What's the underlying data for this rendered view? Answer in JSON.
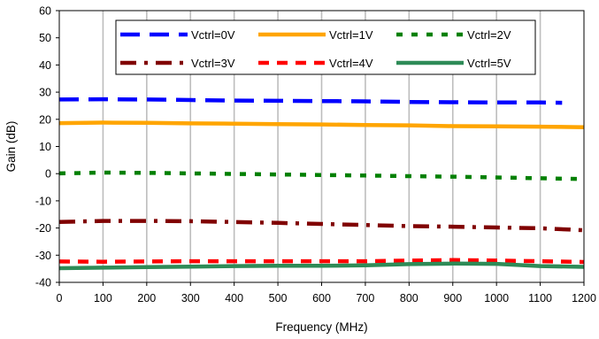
{
  "chart_data": {
    "type": "line",
    "title": "",
    "xlabel": "Frequency (MHz)",
    "ylabel": "Gain (dB)",
    "xlim": [
      0,
      1200
    ],
    "ylim": [
      -40,
      60
    ],
    "xticks": [
      0,
      100,
      200,
      300,
      400,
      500,
      600,
      700,
      800,
      900,
      1000,
      1100,
      1200
    ],
    "yticks": [
      -40,
      -30,
      -20,
      -10,
      0,
      10,
      20,
      30,
      40,
      50,
      60
    ],
    "grid": {
      "x": true,
      "y": false
    },
    "legend_position": "top",
    "series": [
      {
        "name": "Vctrl=0V",
        "color": "#0000ff",
        "dash": "long-dash",
        "x": [
          0,
          100,
          200,
          300,
          400,
          500,
          600,
          700,
          800,
          900,
          1000,
          1100,
          1150
        ],
        "y": [
          27.3,
          27.4,
          27.3,
          27.1,
          26.9,
          26.8,
          26.7,
          26.6,
          26.4,
          26.3,
          26.2,
          26.2,
          26.1
        ]
      },
      {
        "name": "Vctrl=1V",
        "color": "#ffa500",
        "dash": "solid",
        "x": [
          0,
          100,
          200,
          300,
          400,
          500,
          600,
          700,
          800,
          900,
          1000,
          1100,
          1200
        ],
        "y": [
          18.6,
          18.8,
          18.7,
          18.5,
          18.4,
          18.2,
          18.1,
          17.9,
          17.8,
          17.5,
          17.4,
          17.3,
          17.1
        ]
      },
      {
        "name": "Vctrl=2V",
        "color": "#008000",
        "dash": "short-dash",
        "x": [
          0,
          100,
          200,
          300,
          400,
          500,
          600,
          700,
          800,
          900,
          1000,
          1100,
          1200
        ],
        "y": [
          0.1,
          0.4,
          0.3,
          0.1,
          -0.1,
          -0.3,
          -0.5,
          -0.7,
          -0.9,
          -1.1,
          -1.4,
          -1.7,
          -2.0
        ]
      },
      {
        "name": "Vctrl=3V",
        "color": "#800000",
        "dash": "dash-dot",
        "x": [
          0,
          100,
          200,
          300,
          400,
          500,
          600,
          700,
          800,
          900,
          1000,
          1100,
          1200
        ],
        "y": [
          -17.8,
          -17.4,
          -17.4,
          -17.5,
          -17.8,
          -18.1,
          -18.5,
          -18.9,
          -19.3,
          -19.5,
          -19.8,
          -20.1,
          -20.8
        ]
      },
      {
        "name": "Vctrl=4V",
        "color": "#ff0000",
        "dash": "dash",
        "x": [
          0,
          100,
          200,
          300,
          400,
          500,
          600,
          700,
          800,
          900,
          1000,
          1100,
          1200
        ],
        "y": [
          -32.3,
          -32.4,
          -32.3,
          -32.2,
          -32.2,
          -32.2,
          -32.2,
          -32.2,
          -32.0,
          -31.8,
          -32.0,
          -32.2,
          -32.5
        ]
      },
      {
        "name": "Vctrl=5V",
        "color": "#2e8b57",
        "dash": "solid",
        "x": [
          0,
          100,
          200,
          300,
          400,
          500,
          600,
          700,
          800,
          900,
          1000,
          1100,
          1200
        ],
        "y": [
          -34.8,
          -34.6,
          -34.4,
          -34.2,
          -34.0,
          -33.9,
          -33.9,
          -33.7,
          -33.3,
          -33.1,
          -33.2,
          -34.0,
          -34.3
        ]
      }
    ]
  }
}
